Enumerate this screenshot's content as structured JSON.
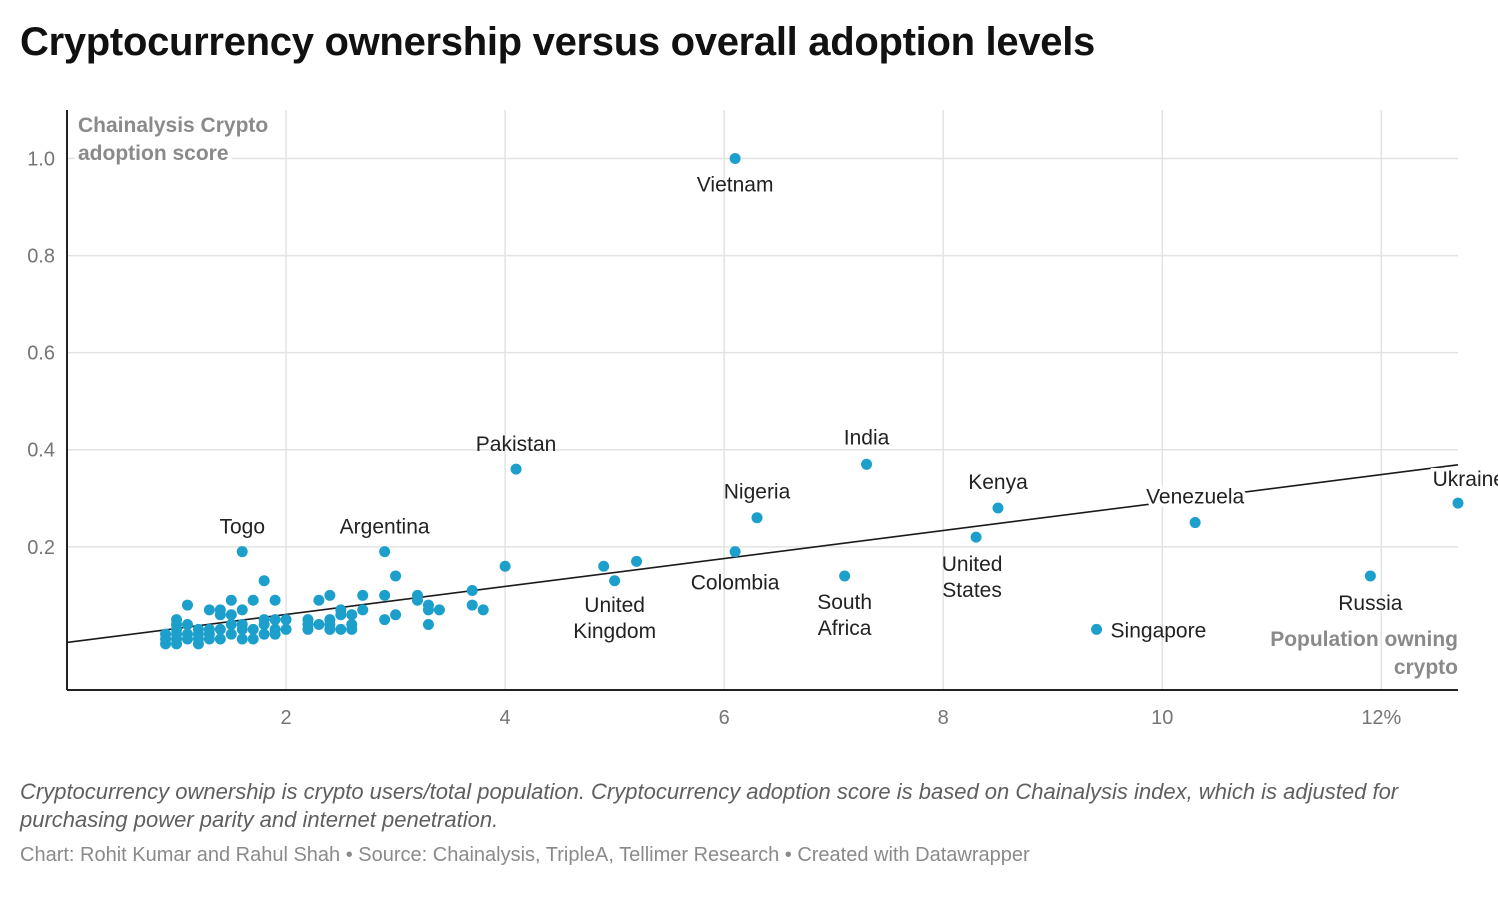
{
  "title": "Cryptocurrency ownership versus overall adoption levels",
  "note": "Cryptocurrency ownership is crypto users/total population. Cryptocurrency adoption score is based on Chainalysis index, which is adjusted for purchasing power parity and internet penetration.",
  "credit": "Chart: Rohit Kumar and Rahul Shah • Source: Chainalysis, TripleA, Tellimer Research • Created with Datawrapper",
  "colors": {
    "point": "#1d9fcc",
    "trend": "#1a1a1a",
    "grid": "#e3e3e3",
    "axis": "#222222"
  },
  "chart_data": {
    "type": "scatter",
    "title": "Cryptocurrency ownership versus overall adoption levels",
    "xlabel": "Population owning crypto",
    "ylabel": "Chainalysis Crypto adoption score",
    "xlim": [
      0,
      12.7
    ],
    "ylim": [
      -0.095,
      1.1
    ],
    "xticks": [
      2,
      4,
      6,
      8,
      10,
      12
    ],
    "xtick_labels": [
      "2",
      "4",
      "6",
      "8",
      "10",
      "12%"
    ],
    "yticks": [
      0.2,
      0.4,
      0.6,
      0.8,
      1.0
    ],
    "ytick_labels": [
      "0.2",
      "0.4",
      "0.6",
      "0.8",
      "1.0"
    ],
    "grid": true,
    "trendline": {
      "x": [
        0,
        12.7
      ],
      "y": [
        0.003,
        0.369
      ]
    },
    "labeled_points": [
      {
        "label": "Vietnam",
        "x": 6.1,
        "y": 1.0
      },
      {
        "label": "Pakistan",
        "x": 4.1,
        "y": 0.36
      },
      {
        "label": "India",
        "x": 7.3,
        "y": 0.37
      },
      {
        "label": "Kenya",
        "x": 8.5,
        "y": 0.28
      },
      {
        "label": "Venezuela",
        "x": 10.3,
        "y": 0.25
      },
      {
        "label": "Ukraine",
        "x": 12.7,
        "y": 0.29
      },
      {
        "label": "Nigeria",
        "x": 6.3,
        "y": 0.26
      },
      {
        "label": "Togo",
        "x": 1.6,
        "y": 0.19
      },
      {
        "label": "Argentina",
        "x": 2.9,
        "y": 0.19
      },
      {
        "label": "Colombia",
        "x": 6.1,
        "y": 0.19
      },
      {
        "label": "United States",
        "x": 8.3,
        "y": 0.22
      },
      {
        "label": "United Kingdom",
        "x": 5.0,
        "y": 0.13
      },
      {
        "label": "South Africa",
        "x": 7.1,
        "y": 0.14
      },
      {
        "label": "Russia",
        "x": 11.9,
        "y": 0.14
      },
      {
        "label": "Singapore",
        "x": 9.4,
        "y": 0.03
      }
    ],
    "other_points": [
      [
        0.9,
        0.02
      ],
      [
        0.9,
        0.01
      ],
      [
        0.9,
        0.0
      ],
      [
        1.0,
        0.03
      ],
      [
        1.0,
        0.02
      ],
      [
        1.0,
        0.01
      ],
      [
        1.0,
        0.0
      ],
      [
        1.0,
        0.04
      ],
      [
        1.0,
        0.05
      ],
      [
        1.1,
        0.02
      ],
      [
        1.1,
        0.01
      ],
      [
        1.1,
        0.04
      ],
      [
        1.1,
        0.08
      ],
      [
        1.2,
        0.03
      ],
      [
        1.2,
        0.02
      ],
      [
        1.2,
        0.01
      ],
      [
        1.2,
        0.0
      ],
      [
        1.3,
        0.07
      ],
      [
        1.3,
        0.03
      ],
      [
        1.3,
        0.02
      ],
      [
        1.3,
        0.01
      ],
      [
        1.4,
        0.07
      ],
      [
        1.4,
        0.06
      ],
      [
        1.4,
        0.03
      ],
      [
        1.4,
        0.01
      ],
      [
        1.5,
        0.09
      ],
      [
        1.5,
        0.06
      ],
      [
        1.5,
        0.04
      ],
      [
        1.5,
        0.02
      ],
      [
        1.6,
        0.07
      ],
      [
        1.6,
        0.04
      ],
      [
        1.6,
        0.03
      ],
      [
        1.6,
        0.01
      ],
      [
        1.7,
        0.09
      ],
      [
        1.7,
        0.03
      ],
      [
        1.7,
        0.01
      ],
      [
        1.8,
        0.13
      ],
      [
        1.8,
        0.05
      ],
      [
        1.8,
        0.04
      ],
      [
        1.8,
        0.02
      ],
      [
        1.9,
        0.09
      ],
      [
        1.9,
        0.05
      ],
      [
        1.9,
        0.03
      ],
      [
        1.9,
        0.02
      ],
      [
        2.0,
        0.05
      ],
      [
        2.0,
        0.03
      ],
      [
        2.2,
        0.05
      ],
      [
        2.2,
        0.04
      ],
      [
        2.2,
        0.03
      ],
      [
        2.3,
        0.09
      ],
      [
        2.3,
        0.04
      ],
      [
        2.4,
        0.1
      ],
      [
        2.4,
        0.05
      ],
      [
        2.4,
        0.04
      ],
      [
        2.4,
        0.03
      ],
      [
        2.5,
        0.07
      ],
      [
        2.5,
        0.06
      ],
      [
        2.5,
        0.03
      ],
      [
        2.6,
        0.06
      ],
      [
        2.6,
        0.04
      ],
      [
        2.6,
        0.03
      ],
      [
        2.7,
        0.1
      ],
      [
        2.7,
        0.07
      ],
      [
        2.9,
        0.1
      ],
      [
        2.9,
        0.05
      ],
      [
        3.0,
        0.14
      ],
      [
        3.0,
        0.06
      ],
      [
        3.2,
        0.1
      ],
      [
        3.2,
        0.09
      ],
      [
        3.3,
        0.08
      ],
      [
        3.3,
        0.07
      ],
      [
        3.3,
        0.04
      ],
      [
        3.4,
        0.07
      ],
      [
        3.7,
        0.11
      ],
      [
        3.7,
        0.08
      ],
      [
        3.8,
        0.07
      ],
      [
        4.0,
        0.16
      ],
      [
        4.9,
        0.16
      ],
      [
        5.2,
        0.17
      ]
    ]
  }
}
